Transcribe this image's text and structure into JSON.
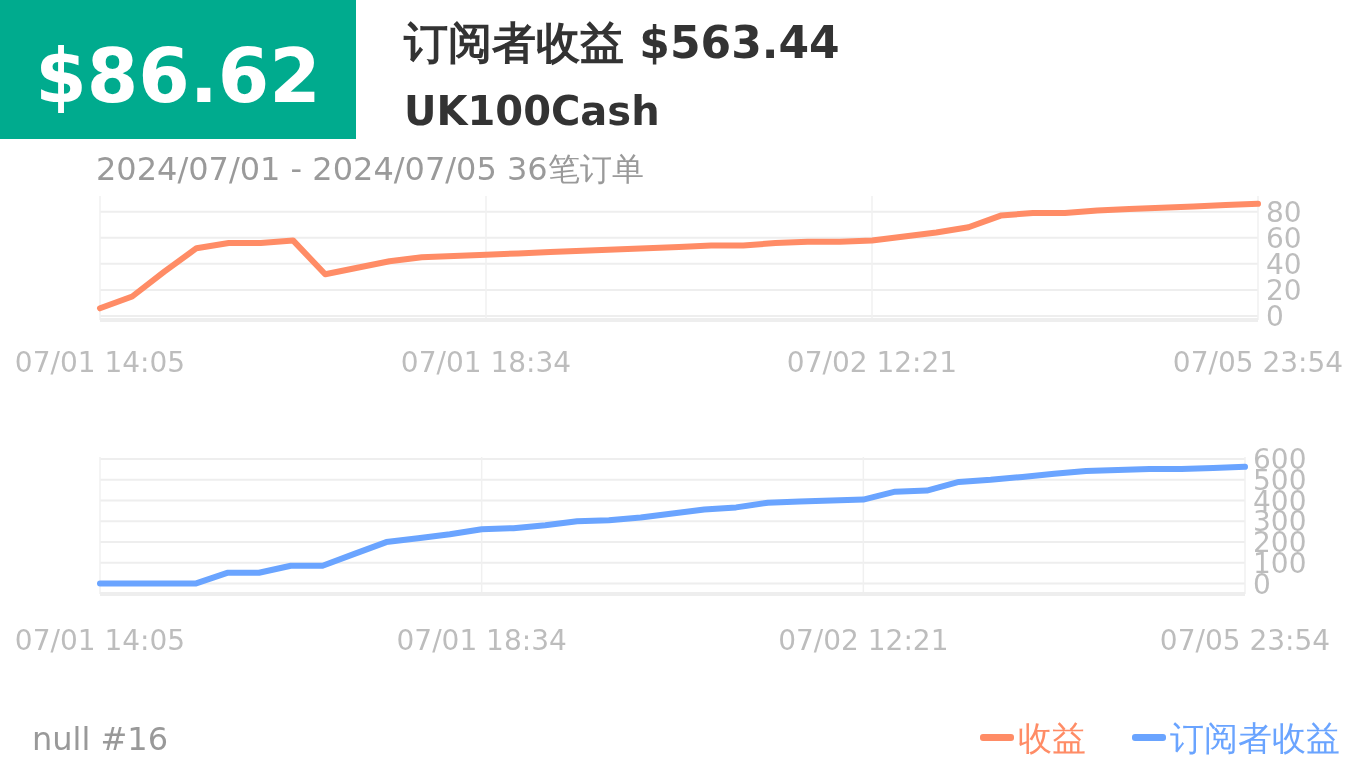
{
  "chart_data": [
    {
      "type": "line",
      "title": "订阅者收益 $563.44",
      "subtitle": "UK100Cash",
      "annotations": [
        "$86.62",
        "2024/07/01 - 2024/07/05  36笔订单",
        "null #16"
      ],
      "categories": [
        "07/01 14:05",
        null,
        null,
        null,
        null,
        null,
        null,
        null,
        null,
        null,
        null,
        null,
        "07/01 18:34",
        null,
        null,
        null,
        null,
        null,
        null,
        null,
        null,
        null,
        null,
        null,
        "07/02 12:21",
        null,
        null,
        null,
        null,
        null,
        null,
        null,
        null,
        null,
        null,
        null,
        "07/05 23:54"
      ],
      "series": [
        {
          "name": "收益",
          "color": "#ff8c66",
          "values": [
            6,
            15,
            34,
            52,
            56,
            56,
            58,
            32,
            37,
            42,
            45,
            46,
            47,
            48,
            49,
            50,
            51,
            52,
            53,
            54,
            54,
            56,
            57,
            57,
            58,
            61,
            64,
            68,
            77,
            79,
            79,
            81,
            82,
            83,
            84,
            85,
            86
          ]
        }
      ],
      "ylim": [
        -3,
        92
      ],
      "yticks": [
        0,
        20,
        40,
        60,
        80
      ],
      "grid": true,
      "legend": "bottom right"
    },
    {
      "type": "line",
      "categories": [
        "07/01 14:05",
        null,
        null,
        null,
        null,
        null,
        null,
        null,
        null,
        null,
        null,
        null,
        "07/01 18:34",
        null,
        null,
        null,
        null,
        null,
        null,
        null,
        null,
        null,
        null,
        null,
        "07/02 12:21",
        null,
        null,
        null,
        null,
        null,
        null,
        null,
        null,
        null,
        null,
        null,
        "07/05 23:54"
      ],
      "series": [
        {
          "name": "订阅者收益",
          "color": "#6aa4ff",
          "values": [
            0,
            0,
            0,
            0,
            52,
            52,
            86,
            86,
            143,
            200,
            219,
            238,
            262,
            267,
            281,
            300,
            305,
            319,
            338,
            357,
            367,
            390,
            395,
            400,
            405,
            443,
            448,
            490,
            500,
            514,
            529,
            543,
            548,
            552,
            552,
            557,
            563
          ]
        }
      ],
      "ylim": [
        -50,
        610
      ],
      "yticks": [
        0,
        100,
        200,
        300,
        400,
        500,
        600
      ],
      "grid": true,
      "legend": "bottom right"
    }
  ]
}
